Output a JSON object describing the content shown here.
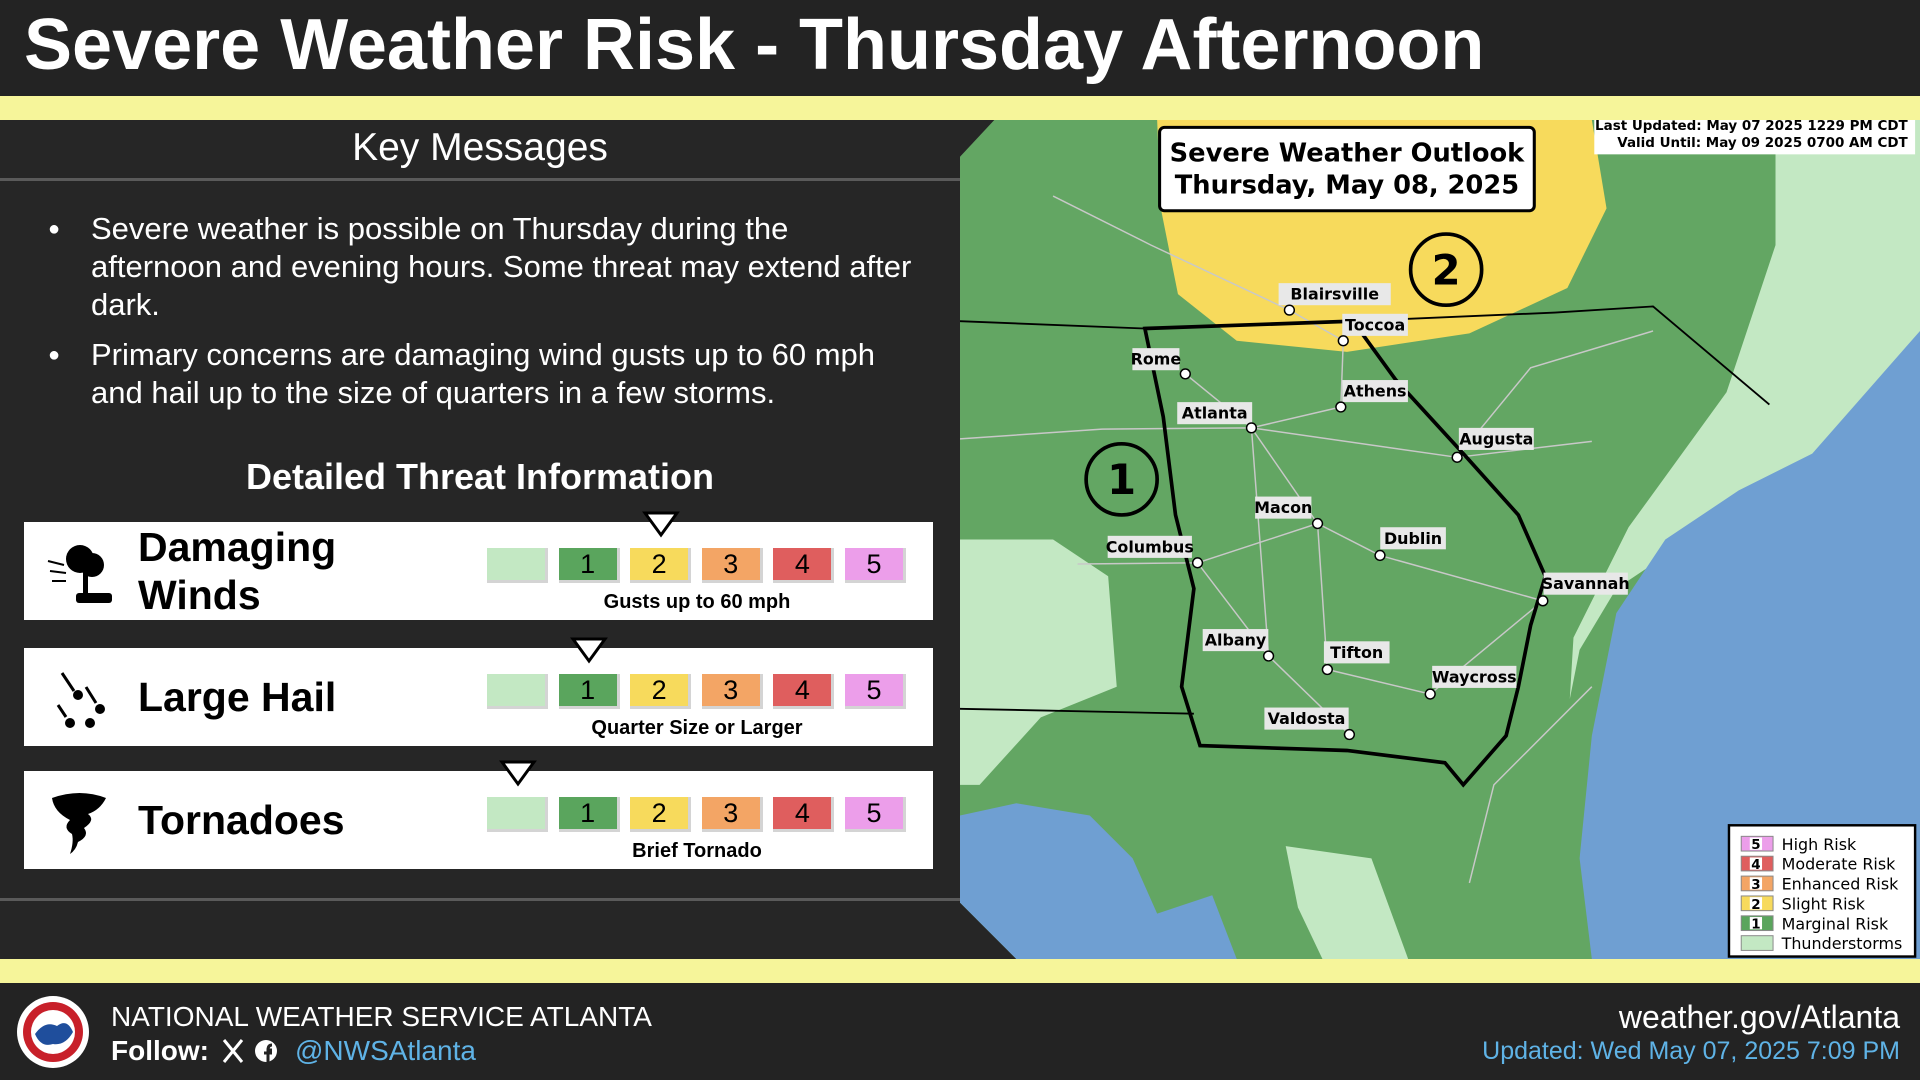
{
  "header": {
    "title": "Severe Weather Risk - Thursday Afternoon"
  },
  "key_messages": {
    "heading": "Key Messages",
    "bullets": [
      "Severe weather is possible on Thursday during the afternoon and evening hours. Some threat may extend after dark.",
      "Primary concerns are damaging wind gusts up to 60 mph and hail up to the size of quarters in a few storms."
    ]
  },
  "threats": {
    "heading": "Detailed Threat Information",
    "scale": [
      "1",
      "2",
      "3",
      "4",
      "5"
    ],
    "colors": [
      "#c3e8c3",
      "#5aa55d",
      "#f7da5c",
      "#f3a565",
      "#df5e5e",
      "#ec9eea"
    ],
    "items": [
      {
        "name": "Damaging Winds",
        "caption": "Gusts up to 60 mph",
        "level": 2
      },
      {
        "name": "Large Hail",
        "caption": "Quarter Size or Larger",
        "level": 1
      },
      {
        "name": "Tornadoes",
        "caption": "Brief Tornado",
        "level": 0
      }
    ]
  },
  "map": {
    "title": [
      "Severe Weather Outlook",
      "Thursday, May 08, 2025"
    ],
    "last_updated": "Last Updated: May 07 2025 1229 PM CDT",
    "valid_until": "Valid Until: May 09 2025 0700 AM CDT",
    "risk_areas": [
      "1",
      "2"
    ],
    "cities": [
      "Blairsville",
      "Toccoa",
      "Rome",
      "Athens",
      "Atlanta",
      "Augusta",
      "Macon",
      "Dublin",
      "Columbus",
      "Savannah",
      "Albany",
      "Tifton",
      "Waycross",
      "Valdosta"
    ],
    "legend": [
      {
        "number": "5",
        "label": "High Risk",
        "color": "#ec9eea"
      },
      {
        "number": "4",
        "label": "Moderate Risk",
        "color": "#df5e5e"
      },
      {
        "number": "3",
        "label": "Enhanced Risk",
        "color": "#f3a565"
      },
      {
        "number": "2",
        "label": "Slight Risk",
        "color": "#f7da5c"
      },
      {
        "number": "1",
        "label": "Marginal Risk",
        "color": "#5aa55d"
      },
      {
        "label": "Thunderstorms",
        "color": "#c3e8c3"
      }
    ]
  },
  "footer": {
    "office": "NATIONAL WEATHER SERVICE ATLANTA",
    "follow": "Follow:",
    "handle": "@NWSAtlanta",
    "website": "weather.gov/Atlanta",
    "updated": "Updated: Wed May 07, 2025 7:09 PM"
  }
}
